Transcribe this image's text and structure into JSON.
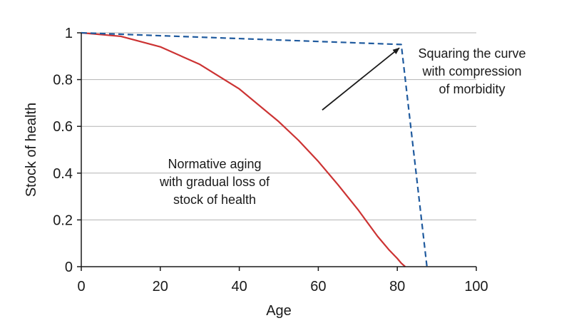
{
  "chart_data": {
    "type": "line",
    "title": "",
    "xlabel": "Age",
    "ylabel": "Stock of health",
    "xlim": [
      0,
      100
    ],
    "ylim": [
      0,
      1
    ],
    "x_ticks": [
      0,
      20,
      40,
      60,
      80,
      100
    ],
    "y_ticks": [
      0,
      0.2,
      0.4,
      0.6,
      0.8,
      1
    ],
    "x_tick_labels": [
      "0",
      "20",
      "40",
      "60",
      "80",
      "100"
    ],
    "y_tick_labels": [
      "0",
      "0.2",
      "0.4",
      "0.6",
      "0.8",
      "1"
    ],
    "grid": "horizontal",
    "series": [
      {
        "style": "solid",
        "color": "#cc3333",
        "x": [
          0,
          10,
          20,
          30,
          40,
          50,
          55,
          60,
          65,
          70,
          75,
          78,
          80,
          81,
          82
        ],
        "y": [
          1,
          0.985,
          0.94,
          0.865,
          0.76,
          0.62,
          0.54,
          0.45,
          0.35,
          0.245,
          0.13,
          0.07,
          0.035,
          0.015,
          0
        ]
      },
      {
        "style": "dashed",
        "color": "#1f5a9e",
        "x": [
          0,
          81,
          87.5
        ],
        "y": [
          1,
          0.95,
          0
        ]
      }
    ],
    "annotations": [
      {
        "id": "squaring",
        "lines": [
          "Squaring the curve",
          "with compression",
          "of morbidity"
        ],
        "arrow": {
          "from": [
            61,
            0.67
          ],
          "to": [
            80.5,
            0.935
          ]
        }
      },
      {
        "id": "normative",
        "lines": [
          "Normative aging",
          "with gradual loss of",
          "stock of health"
        ]
      }
    ]
  }
}
